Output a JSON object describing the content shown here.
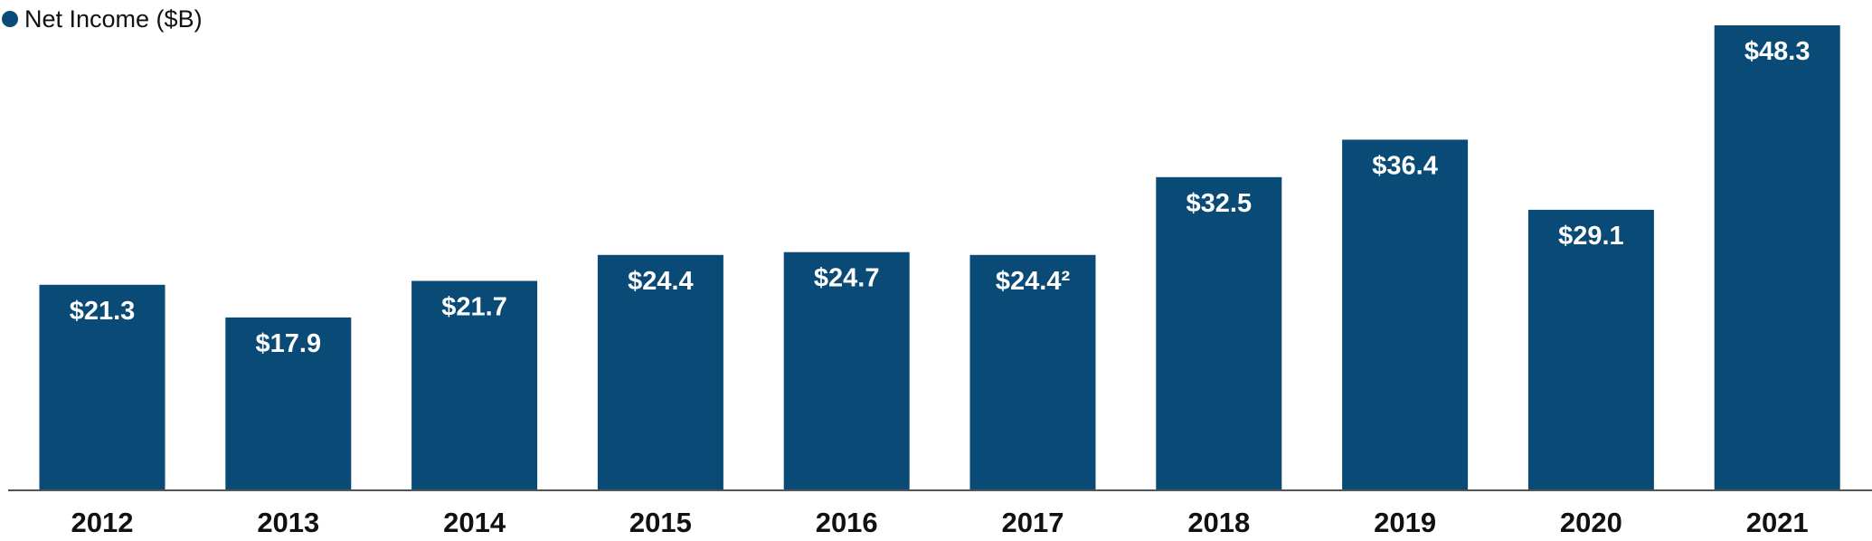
{
  "chart_data": {
    "type": "bar",
    "categories": [
      "2012",
      "2013",
      "2014",
      "2015",
      "2016",
      "2017",
      "2018",
      "2019",
      "2020",
      "2021"
    ],
    "series": [
      {
        "name": "Net Income ($B)",
        "values": [
          21.3,
          17.9,
          21.7,
          24.4,
          24.7,
          24.4,
          32.5,
          36.4,
          29.1,
          48.3
        ],
        "labels": [
          "$21.3",
          "$17.9",
          "$21.7",
          "$24.4",
          "$24.7",
          "$24.4²",
          "$32.5",
          "$36.4",
          "$29.1",
          "$48.3"
        ]
      }
    ],
    "title": "",
    "xlabel": "",
    "ylabel": "",
    "ylim": [
      0,
      51
    ],
    "grid": false,
    "legend": {
      "placement": "top-left"
    },
    "colors": {
      "bar": "#0a4a76",
      "bar_label": "#ffffff",
      "axis": "#555555",
      "tick_label": "#111111"
    }
  }
}
